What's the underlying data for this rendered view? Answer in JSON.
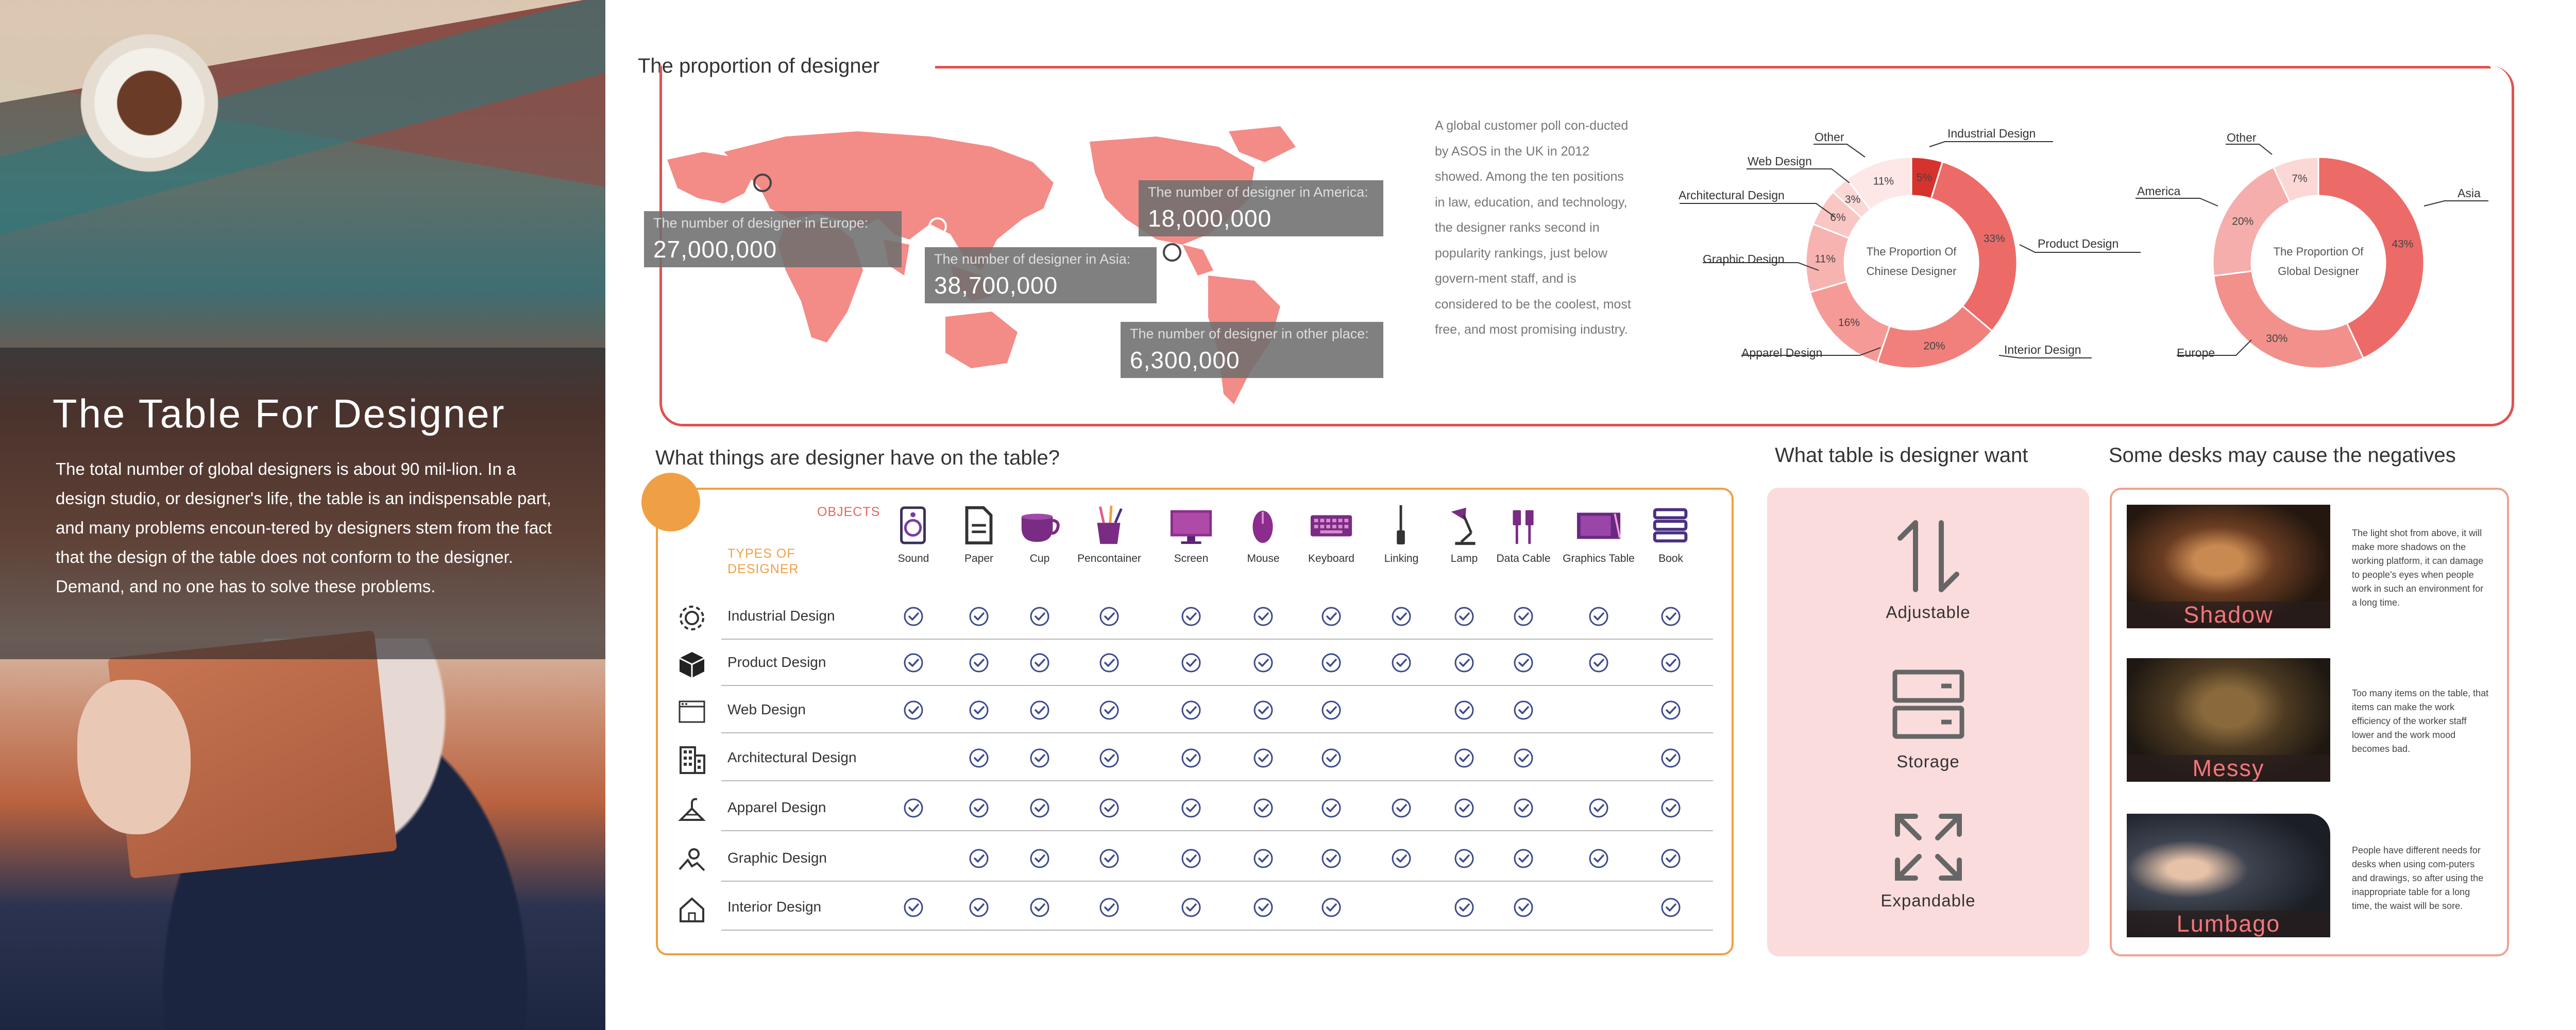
{
  "left": {
    "title": "The Table For Designer",
    "description": "The total number of global designers is about 90 mil-lion. In a design studio, or designer's life, the table is an indispensable part, and many problems encoun-tered by designers stem from the fact that the design of the table does not conform to the designer. Demand, and no one has to solve these problems."
  },
  "proportion": {
    "title": "The proportion of designer",
    "regions": [
      {
        "label": "The number of designer in Europe:",
        "value": "27,000,000"
      },
      {
        "label": "The number of designer in Asia:",
        "value": "38,700,000"
      },
      {
        "label": "The number of designer in America:",
        "value": "18,000,000"
      },
      {
        "label": "The number of designer in other place:",
        "value": "6,300,000"
      }
    ],
    "poll_text": "A global customer poll con-ducted by ASOS in the UK in 2012 showed. Among the ten positions in law, education, and technology, the designer ranks second in popularity rankings, just below govern-ment staff, and is considered to be the coolest, most free, and most promising industry."
  },
  "chart_data": [
    {
      "type": "pie",
      "title": "The Proportion Of Chinese Designer",
      "title_line1": "The Proportion Of",
      "title_line2": "Chinese Designer",
      "categories": [
        "Industrial Design",
        "Product Design",
        "Interior Design",
        "Apparel Design",
        "Graphic Design",
        "Architectural Design",
        "Web Design",
        "Other"
      ],
      "values": [
        5,
        33,
        20,
        16,
        11,
        6,
        3,
        11
      ],
      "labels": [
        "5%",
        "33%",
        "20%",
        "16%",
        "11%",
        "6%",
        "3%",
        "11%"
      ],
      "colors": [
        "#d6332e",
        "#ec6b68",
        "#f17f7b",
        "#f59a96",
        "#f7b3b0",
        "#f9c6c3",
        "#fbd7d5",
        "#fde8e7"
      ]
    },
    {
      "type": "pie",
      "title": "The Proportion Of Global Designer",
      "title_line1": "The Proportion Of",
      "title_line2": "Global Designer",
      "categories": [
        "Asia",
        "Europe",
        "America",
        "Other"
      ],
      "values": [
        43,
        30,
        20,
        7
      ],
      "labels": [
        "43%",
        "30%",
        "20%",
        "7%"
      ],
      "colors": [
        "#ec6b68",
        "#f2908c",
        "#f5aeab",
        "#fbd7d5"
      ]
    }
  ],
  "table": {
    "title": "What things are designer have on the table?",
    "objects_label": "OBJECTS",
    "types_label": "TYPES OF DESIGNER",
    "objects": [
      {
        "name": "Sound",
        "icon": "speaker-icon"
      },
      {
        "name": "Paper",
        "icon": "paper-icon"
      },
      {
        "name": "Cup",
        "icon": "cup-icon"
      },
      {
        "name": "Pencontainer",
        "icon": "pen-container-icon"
      },
      {
        "name": "Screen",
        "icon": "monitor-icon"
      },
      {
        "name": "Mouse",
        "icon": "mouse-icon"
      },
      {
        "name": "Keyboard",
        "icon": "keyboard-icon"
      },
      {
        "name": "Linking",
        "icon": "link-cable-icon"
      },
      {
        "name": "Lamp",
        "icon": "lamp-icon"
      },
      {
        "name": "Data Cable",
        "icon": "usb-cable-icon"
      },
      {
        "name": "Graphics Table",
        "icon": "graphics-tablet-icon"
      },
      {
        "name": "Book",
        "icon": "books-icon"
      }
    ],
    "rows": [
      {
        "name": "Industrial Design",
        "icon": "gear-icon",
        "checks": [
          1,
          1,
          1,
          1,
          1,
          1,
          1,
          1,
          1,
          1,
          1,
          1
        ]
      },
      {
        "name": "Product Design",
        "icon": "cube-icon",
        "checks": [
          1,
          1,
          1,
          1,
          1,
          1,
          1,
          1,
          1,
          1,
          1,
          1
        ]
      },
      {
        "name": "Web Design",
        "icon": "browser-window-icon",
        "checks": [
          1,
          1,
          1,
          1,
          1,
          1,
          1,
          0,
          1,
          1,
          0,
          1
        ]
      },
      {
        "name": "Architectural Design",
        "icon": "building-icon",
        "checks": [
          0,
          1,
          1,
          1,
          1,
          1,
          1,
          0,
          1,
          1,
          0,
          1
        ]
      },
      {
        "name": "Apparel Design",
        "icon": "hanger-icon",
        "checks": [
          1,
          1,
          1,
          1,
          1,
          1,
          1,
          1,
          1,
          1,
          1,
          1
        ]
      },
      {
        "name": "Graphic Design",
        "icon": "shapes-icon",
        "checks": [
          0,
          1,
          1,
          1,
          1,
          1,
          1,
          1,
          1,
          1,
          1,
          1
        ]
      },
      {
        "name": "Interior Design",
        "icon": "house-icon",
        "checks": [
          1,
          1,
          1,
          1,
          1,
          1,
          1,
          0,
          1,
          1,
          0,
          1
        ]
      }
    ]
  },
  "want": {
    "title": "What table is designer want",
    "items": [
      {
        "label": "Adjustable",
        "icon": "up-down-arrows-icon"
      },
      {
        "label": "Storage",
        "icon": "storage-drawers-icon"
      },
      {
        "label": "Expandable",
        "icon": "expand-arrows-icon"
      }
    ]
  },
  "negatives": {
    "title": "Some desks may cause the negatives",
    "items": [
      {
        "caption": "Shadow",
        "text": "The light shot from above, it will make more shadows on the working platform, it can damage to people's eyes when people work in such an environment for a long time."
      },
      {
        "caption": "Messy",
        "text": "Too many items on the table, that items can make the work efficiency of the worker staff lower and the work mood becomes bad."
      },
      {
        "caption": "Lumbago",
        "text": "People have different needs for desks when using com-puters and drawings, so after using the inappropriate table for a long time, the waist will be sore."
      }
    ]
  }
}
